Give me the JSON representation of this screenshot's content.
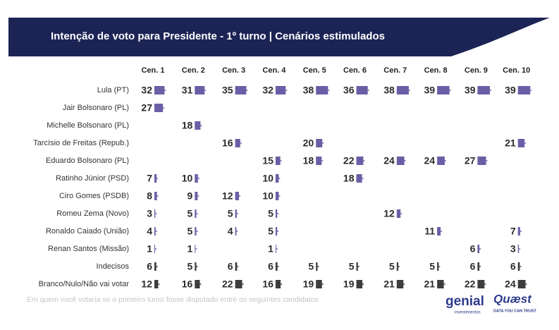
{
  "chart_data": {
    "type": "bar",
    "title": "Intenção de voto para Presidente - 1º turno | Cenários estimulados",
    "footnote": "Em quem você votaria se o primeiro turno fosse disputado entre os seguintes candidatos",
    "logos": [
      "genial",
      "investimentos",
      "Quæst",
      "DATA YOU CAN TRUST"
    ],
    "categories": [
      "Lula (PT)",
      "Jair Bolsonaro (PL)",
      "Michelle Bolsonaro (PL)",
      "Tarcísio de Freitas (Repub.)",
      "Eduardo Bolsonaro (PL)",
      "Ratinho Júnior (PSD)",
      "Ciro Gomes (PSDB)",
      "Romeu Zema (Novo)",
      "Ronaldo Caiado (União)",
      "Renan Santos (Missão)",
      "Indecisos",
      "Branco/Nulo/Não vai votar"
    ],
    "colors": [
      "#6a5fa6",
      "#6a5fa6",
      "#6a5fa6",
      "#6a5fa6",
      "#6a5fa6",
      "#6a5fa6",
      "#6a5fa6",
      "#6a5fa6",
      "#6a5fa6",
      "#6a5fa6",
      "#3d3d3d",
      "#3d3d3d"
    ],
    "series": [
      {
        "name": "Cen. 1",
        "values": [
          32,
          27,
          null,
          null,
          null,
          7,
          8,
          3,
          4,
          1,
          6,
          12
        ]
      },
      {
        "name": "Cen. 2",
        "values": [
          31,
          null,
          18,
          null,
          null,
          10,
          9,
          5,
          5,
          1,
          5,
          16
        ]
      },
      {
        "name": "Cen. 3",
        "values": [
          35,
          null,
          null,
          16,
          null,
          null,
          12,
          5,
          4,
          null,
          6,
          22
        ]
      },
      {
        "name": "Cen. 4",
        "values": [
          32,
          null,
          null,
          null,
          15,
          10,
          10,
          5,
          5,
          1,
          6,
          16
        ]
      },
      {
        "name": "Cen. 5",
        "values": [
          38,
          null,
          null,
          20,
          18,
          null,
          null,
          null,
          null,
          null,
          5,
          19
        ]
      },
      {
        "name": "Cen. 6",
        "values": [
          36,
          null,
          null,
          null,
          22,
          18,
          null,
          null,
          null,
          null,
          5,
          19
        ]
      },
      {
        "name": "Cen. 7",
        "values": [
          38,
          null,
          null,
          null,
          24,
          null,
          null,
          12,
          null,
          null,
          5,
          21
        ]
      },
      {
        "name": "Cen. 8",
        "values": [
          39,
          null,
          null,
          null,
          24,
          null,
          null,
          null,
          11,
          null,
          5,
          21
        ]
      },
      {
        "name": "Cen. 9",
        "values": [
          39,
          null,
          null,
          null,
          27,
          null,
          null,
          null,
          null,
          6,
          6,
          22
        ]
      },
      {
        "name": "Cen. 10",
        "values": [
          39,
          null,
          null,
          21,
          null,
          null,
          null,
          null,
          7,
          3,
          6,
          24
        ]
      }
    ]
  }
}
